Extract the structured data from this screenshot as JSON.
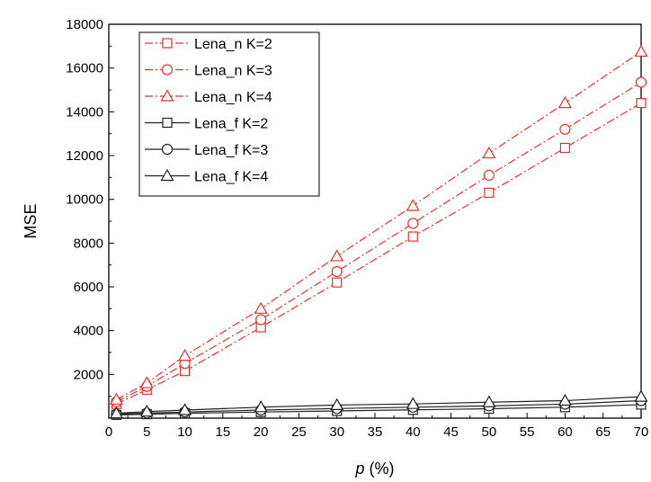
{
  "chart_data": {
    "type": "line",
    "title": "",
    "xlabel": {
      "var": "p",
      "unit": " (%)"
    },
    "ylabel": "MSE",
    "xlim": [
      0,
      70
    ],
    "ylim": [
      0,
      18000
    ],
    "xticks": [
      0,
      5,
      10,
      15,
      20,
      25,
      30,
      35,
      40,
      45,
      50,
      55,
      60,
      65,
      70
    ],
    "yticks": [
      2000,
      4000,
      6000,
      8000,
      10000,
      12000,
      14000,
      16000,
      18000
    ],
    "grid": false,
    "legend_position": "top-left",
    "x": [
      1,
      5,
      10,
      20,
      30,
      40,
      50,
      60,
      70
    ],
    "series": [
      {
        "name": "Lena_n K=2",
        "color": "#e8302a",
        "marker": "square",
        "dash": "dashdot",
        "values": [
          650,
          1300,
          2150,
          4150,
          6200,
          8300,
          10300,
          12350,
          14400
        ]
      },
      {
        "name": "Lena_n K=3",
        "color": "#e8302a",
        "marker": "circle",
        "dash": "dashdot",
        "values": [
          750,
          1450,
          2500,
          4500,
          6700,
          8900,
          11100,
          13200,
          15350
        ]
      },
      {
        "name": "Lena_n K=4",
        "color": "#e8302a",
        "marker": "triangle",
        "dash": "dashdot",
        "values": [
          850,
          1600,
          2850,
          5000,
          7400,
          9700,
          12100,
          14400,
          16750
        ]
      },
      {
        "name": "Lena_f K=2",
        "color": "#222222",
        "marker": "square",
        "dash": "solid",
        "values": [
          150,
          180,
          220,
          280,
          330,
          380,
          430,
          500,
          620
        ]
      },
      {
        "name": "Lena_f K=3",
        "color": "#222222",
        "marker": "circle",
        "dash": "solid",
        "values": [
          180,
          230,
          280,
          370,
          440,
          500,
          560,
          640,
          800
        ]
      },
      {
        "name": "Lena_f K=4",
        "color": "#222222",
        "marker": "triangle",
        "dash": "solid",
        "values": [
          220,
          300,
          370,
          500,
          600,
          650,
          730,
          800,
          980
        ]
      }
    ]
  }
}
